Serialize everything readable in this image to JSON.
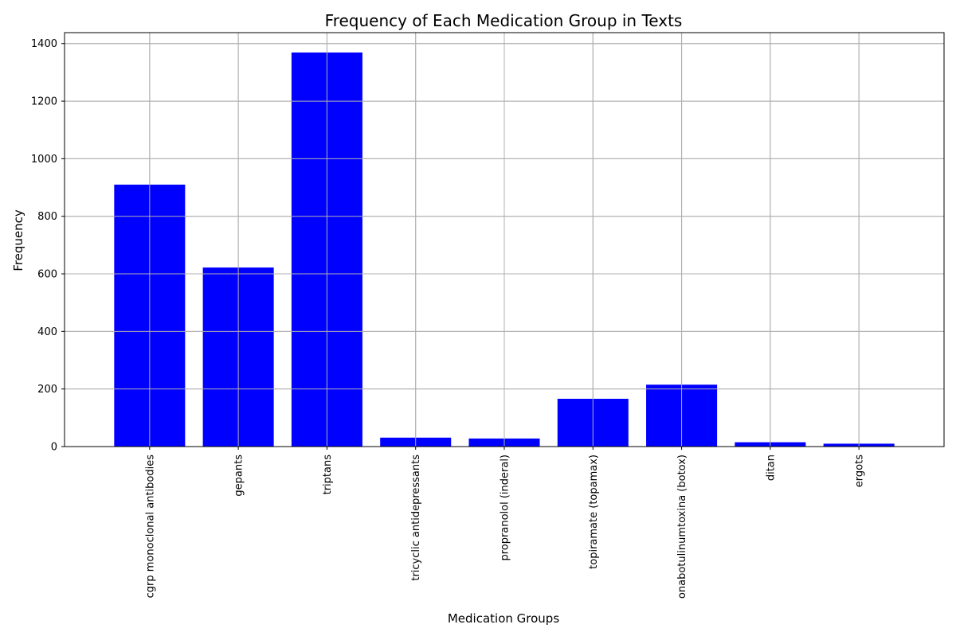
{
  "chart_data": {
    "type": "bar",
    "title": "Frequency of Each Medication Group in Texts",
    "xlabel": "Medication Groups",
    "ylabel": "Frequency",
    "categories": [
      "cgrp monoclonal antibodies",
      "gepants",
      "triptans",
      "tricyclic antidepressants",
      "propranolol (inderal)",
      "topiramate (topamax)",
      "onabotulinumtoxina (botox)",
      "ditan",
      "ergots"
    ],
    "values": [
      910,
      622,
      1369,
      31,
      28,
      166,
      215,
      15,
      10
    ],
    "y_ticks": [
      0,
      200,
      400,
      600,
      800,
      1000,
      1200,
      1400
    ],
    "ylim": [
      0,
      1438
    ],
    "grid": true,
    "bar_color": "#0000ff",
    "grid_color": "#b0b0b0"
  }
}
